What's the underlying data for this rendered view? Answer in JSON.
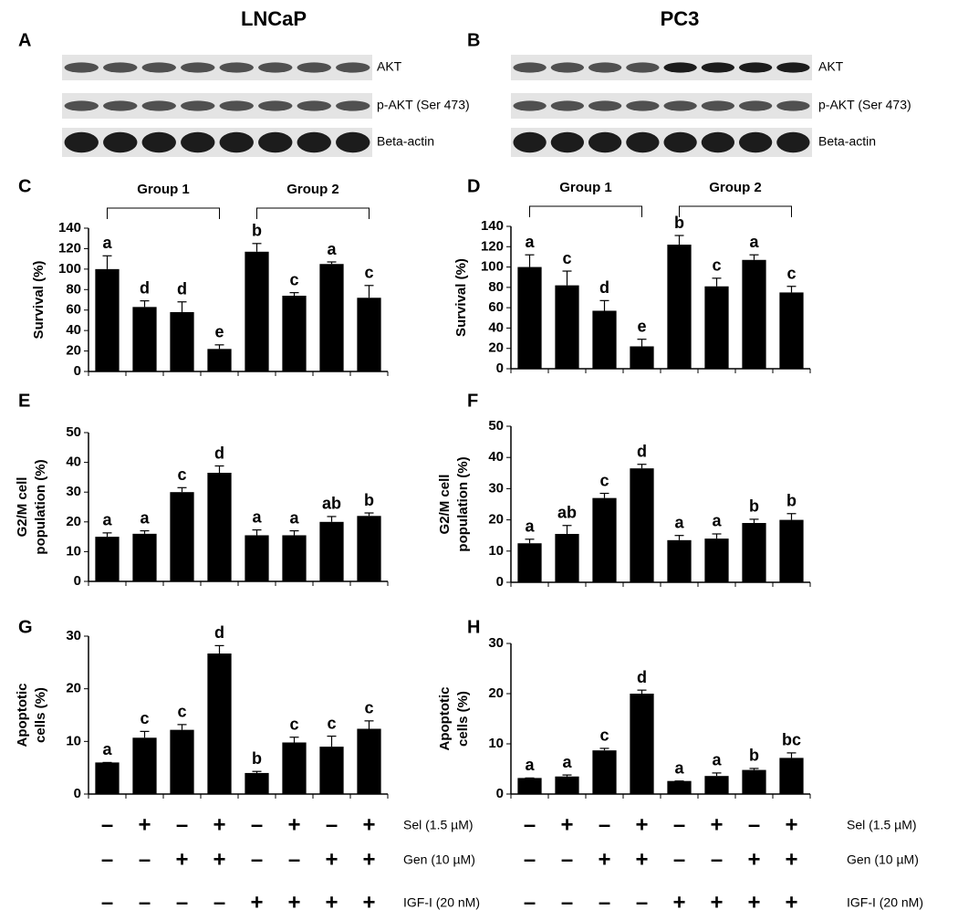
{
  "columns": [
    "LNCaP",
    "PC3"
  ],
  "blots": [
    {
      "panel": "A",
      "labels": [
        "AKT",
        "p-AKT (Ser 473)",
        "Beta-actin"
      ]
    },
    {
      "panel": "B",
      "labels": [
        "AKT",
        "p-AKT (Ser 473)",
        "Beta-actin"
      ]
    }
  ],
  "treatments": [
    {
      "label": "Sel (1.5 µM)",
      "signs": [
        "–",
        "+",
        "–",
        "+",
        "–",
        "+",
        "–",
        "+"
      ]
    },
    {
      "label": "Gen (10 µM)",
      "signs": [
        "–",
        "–",
        "+",
        "+",
        "–",
        "–",
        "+",
        "+"
      ]
    },
    {
      "label": "IGF-I (20 nM)",
      "signs": [
        "–",
        "–",
        "–",
        "–",
        "+",
        "+",
        "+",
        "+"
      ]
    }
  ],
  "chart_data": [
    {
      "type": "bar",
      "panel": "C",
      "ylabel": [
        "Survival (%)"
      ],
      "groups": [
        "Group 1",
        "Group 2"
      ],
      "color": "#000000",
      "values": [
        100,
        63,
        58,
        22,
        117,
        74,
        105,
        72
      ],
      "errors": [
        13,
        6,
        10,
        4,
        8,
        3,
        2,
        12
      ],
      "annotations": [
        "a",
        "d",
        "d",
        "e",
        "b",
        "c",
        "a",
        "c"
      ],
      "ylim": [
        0,
        140
      ],
      "yticks": [
        0,
        20,
        40,
        60,
        80,
        100,
        120,
        140
      ]
    },
    {
      "type": "bar",
      "panel": "D",
      "ylabel": [
        "Survival (%)"
      ],
      "groups": [
        "Group 1",
        "Group 2"
      ],
      "color": "#000000",
      "values": [
        100,
        82,
        57,
        22,
        122,
        81,
        107,
        75
      ],
      "errors": [
        12,
        14,
        10,
        7,
        9,
        8,
        5,
        6
      ],
      "annotations": [
        "a",
        "c",
        "d",
        "e",
        "b",
        "c",
        "a",
        "c"
      ],
      "ylim": [
        0,
        140
      ],
      "yticks": [
        0,
        20,
        40,
        60,
        80,
        100,
        120,
        140
      ]
    },
    {
      "type": "bar",
      "panel": "E",
      "ylabel": [
        "G2/M cell",
        "population (%)"
      ],
      "color": "#000000",
      "values": [
        15,
        16,
        30,
        36.5,
        15.5,
        15.5,
        20,
        22
      ],
      "errors": [
        1.3,
        1,
        1.5,
        2.3,
        1.8,
        1.5,
        1.8,
        1
      ],
      "annotations": [
        "a",
        "a",
        "c",
        "d",
        "a",
        "a",
        "ab",
        "b"
      ],
      "ylim": [
        0,
        50
      ],
      "yticks": [
        0,
        10,
        20,
        30,
        40,
        50
      ]
    },
    {
      "type": "bar",
      "panel": "F",
      "ylabel": [
        "G2/M cell",
        "population (%)"
      ],
      "color": "#000000",
      "values": [
        12.5,
        15.5,
        27,
        36.5,
        13.5,
        14,
        19,
        20
      ],
      "errors": [
        1.3,
        2.7,
        1.5,
        1.3,
        1.5,
        1.5,
        1.2,
        2
      ],
      "annotations": [
        "a",
        "ab",
        "c",
        "d",
        "a",
        "a",
        "b",
        "b"
      ],
      "ylim": [
        0,
        50
      ],
      "yticks": [
        0,
        10,
        20,
        30,
        40,
        50
      ]
    },
    {
      "type": "bar",
      "panel": "G",
      "ylabel": [
        "Apoptotic",
        "cells (%)"
      ],
      "color": "#000000",
      "values": [
        6,
        10.7,
        12.2,
        26.7,
        4,
        9.8,
        9,
        12.4
      ],
      "errors": [
        0,
        1.2,
        1,
        1.5,
        0.3,
        1,
        2,
        1.5
      ],
      "annotations": [
        "a",
        "c",
        "c",
        "d",
        "b",
        "c",
        "c",
        "c"
      ],
      "ylim": [
        0,
        30
      ],
      "yticks": [
        0,
        10,
        20,
        30
      ]
    },
    {
      "type": "bar",
      "panel": "H",
      "ylabel": [
        "Apoptotic",
        "cells (%)"
      ],
      "color": "#000000",
      "values": [
        3.2,
        3.5,
        8.7,
        20,
        2.6,
        3.6,
        4.8,
        7.2
      ],
      "errors": [
        0,
        0.3,
        0.4,
        0.7,
        0,
        0.6,
        0.3,
        1
      ],
      "annotations": [
        "a",
        "a",
        "c",
        "d",
        "a",
        "a",
        "b",
        "bc"
      ],
      "ylim": [
        0,
        30
      ],
      "yticks": [
        0,
        10,
        20,
        30
      ]
    }
  ]
}
